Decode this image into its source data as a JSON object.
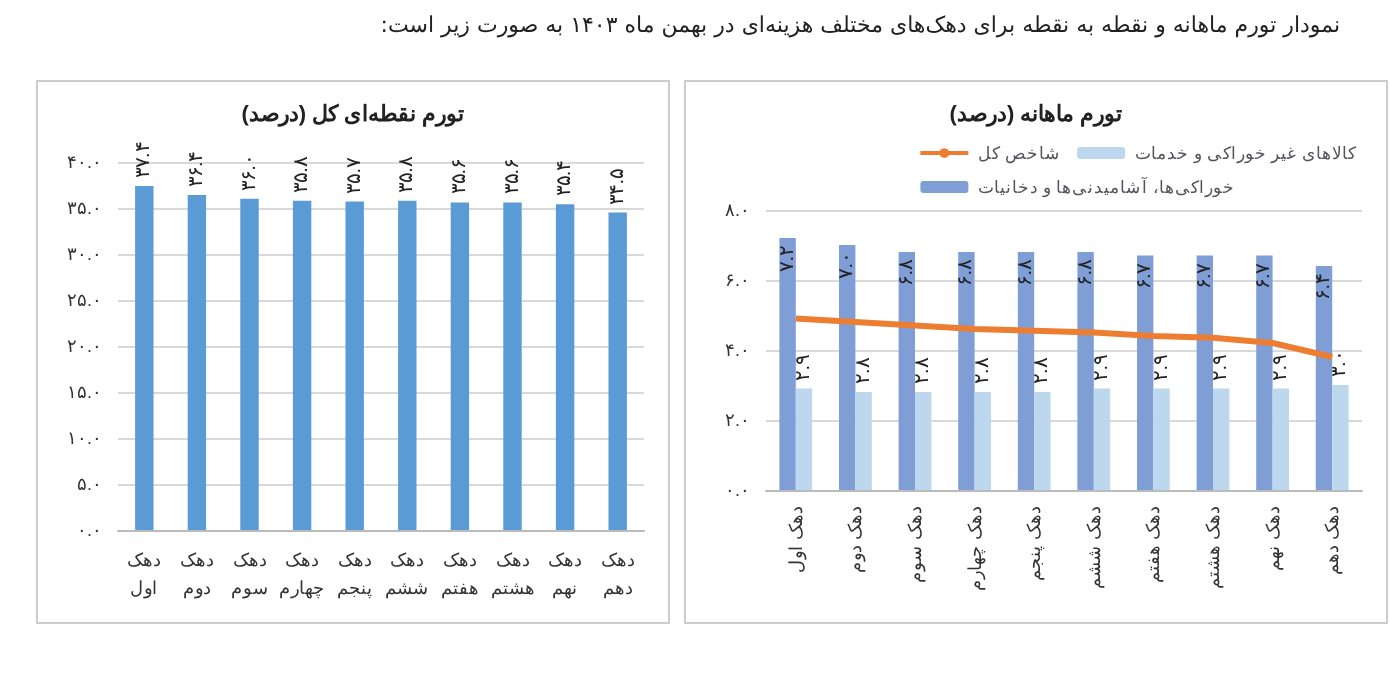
{
  "chart_data": [
    {
      "type": "bar",
      "title": "تورم نقطه‌ای کل (درصد)",
      "annotations": [
        "نمودار تورم ماهانه و نقطه به نقطه برای دهک‌های مختلف هزینه‌ای در بهمن ماه ۱۴۰۳ به صورت زیر است:"
      ],
      "categories": [
        "دهک اول",
        "دهک دوم",
        "دهک سوم",
        "دهک چهارم",
        "دهک پنجم",
        "دهک ششم",
        "دهک هفتم",
        "دهک هشتم",
        "دهک نهم",
        "دهک دهم"
      ],
      "series": [
        {
          "color": "#5b9bd5",
          "values": [
            37.4,
            36.4,
            36.0,
            35.8,
            35.7,
            35.8,
            35.6,
            35.6,
            35.4,
            34.5
          ],
          "value_labels": [
            "۳۷.۴",
            "۳۶.۴",
            "۳۶.۰",
            "۳۵.۸",
            "۳۵.۷",
            "۳۵.۸",
            "۳۵.۶",
            "۳۵.۶",
            "۳۵.۴",
            "۳۴.۵"
          ]
        }
      ],
      "ylim": [
        0,
        40
      ],
      "yticks": [
        {
          "value": 0,
          "label": "۰.۰"
        },
        {
          "value": 5,
          "label": "۵.۰"
        },
        {
          "value": 10,
          "label": "۱۰.۰"
        },
        {
          "value": 15,
          "label": "۱۵.۰"
        },
        {
          "value": 20,
          "label": "۲۰.۰"
        },
        {
          "value": 25,
          "label": "۲۵.۰"
        },
        {
          "value": 30,
          "label": "۳۰.۰"
        },
        {
          "value": 35,
          "label": "۳۵.۰"
        },
        {
          "value": 40,
          "label": "۴۰.۰"
        }
      ],
      "grid": "y"
    },
    {
      "type": "bar",
      "title": "تورم ماهانه (درصد)",
      "categories": [
        "دهک اول",
        "دهک دوم",
        "دهک سوم",
        "دهک چهارم",
        "دهک پنجم",
        "دهک ششم",
        "دهک هفتم",
        "دهک هشتم",
        "دهک نهم",
        "دهک دهم"
      ],
      "series": [
        {
          "name": "خوراکی‌ها، آشامیدنی‌ها و دخانیات",
          "color": "#7f9ed6",
          "values": [
            7.2,
            7.0,
            6.8,
            6.8,
            6.8,
            6.8,
            6.7,
            6.7,
            6.7,
            6.4
          ],
          "value_labels": [
            "۷.۲",
            "۷.۰",
            "۶.۸",
            "۶.۸",
            "۶.۸",
            "۶.۸",
            "۶.۷",
            "۶.۷",
            "۶.۷",
            "۶.۴"
          ]
        },
        {
          "name": "کالاهای غیر خوراکی و خدمات",
          "color": "#bdd7ee",
          "values": [
            2.9,
            2.8,
            2.8,
            2.8,
            2.8,
            2.9,
            2.9,
            2.9,
            2.9,
            3.0
          ],
          "value_labels": [
            "۲.۹",
            "۲.۸",
            "۲.۸",
            "۲.۸",
            "۲.۸",
            "۲.۹",
            "۲.۹",
            "۲.۹",
            "۲.۹",
            "۳.۰"
          ]
        },
        {
          "name": "شاخص کل",
          "type": "line",
          "color": "#ed7d31",
          "values": [
            4.9,
            4.8,
            4.7,
            4.6,
            4.55,
            4.5,
            4.4,
            4.35,
            4.2,
            3.8
          ]
        }
      ],
      "ylim": [
        0,
        8
      ],
      "yticks": [
        {
          "value": 0,
          "label": "۰.۰"
        },
        {
          "value": 2,
          "label": "۲.۰"
        },
        {
          "value": 4,
          "label": "۴.۰"
        },
        {
          "value": 6,
          "label": "۶.۰"
        },
        {
          "value": 8,
          "label": "۸.۰"
        }
      ],
      "grid": "y",
      "legend": "top",
      "marker": "none"
    }
  ]
}
